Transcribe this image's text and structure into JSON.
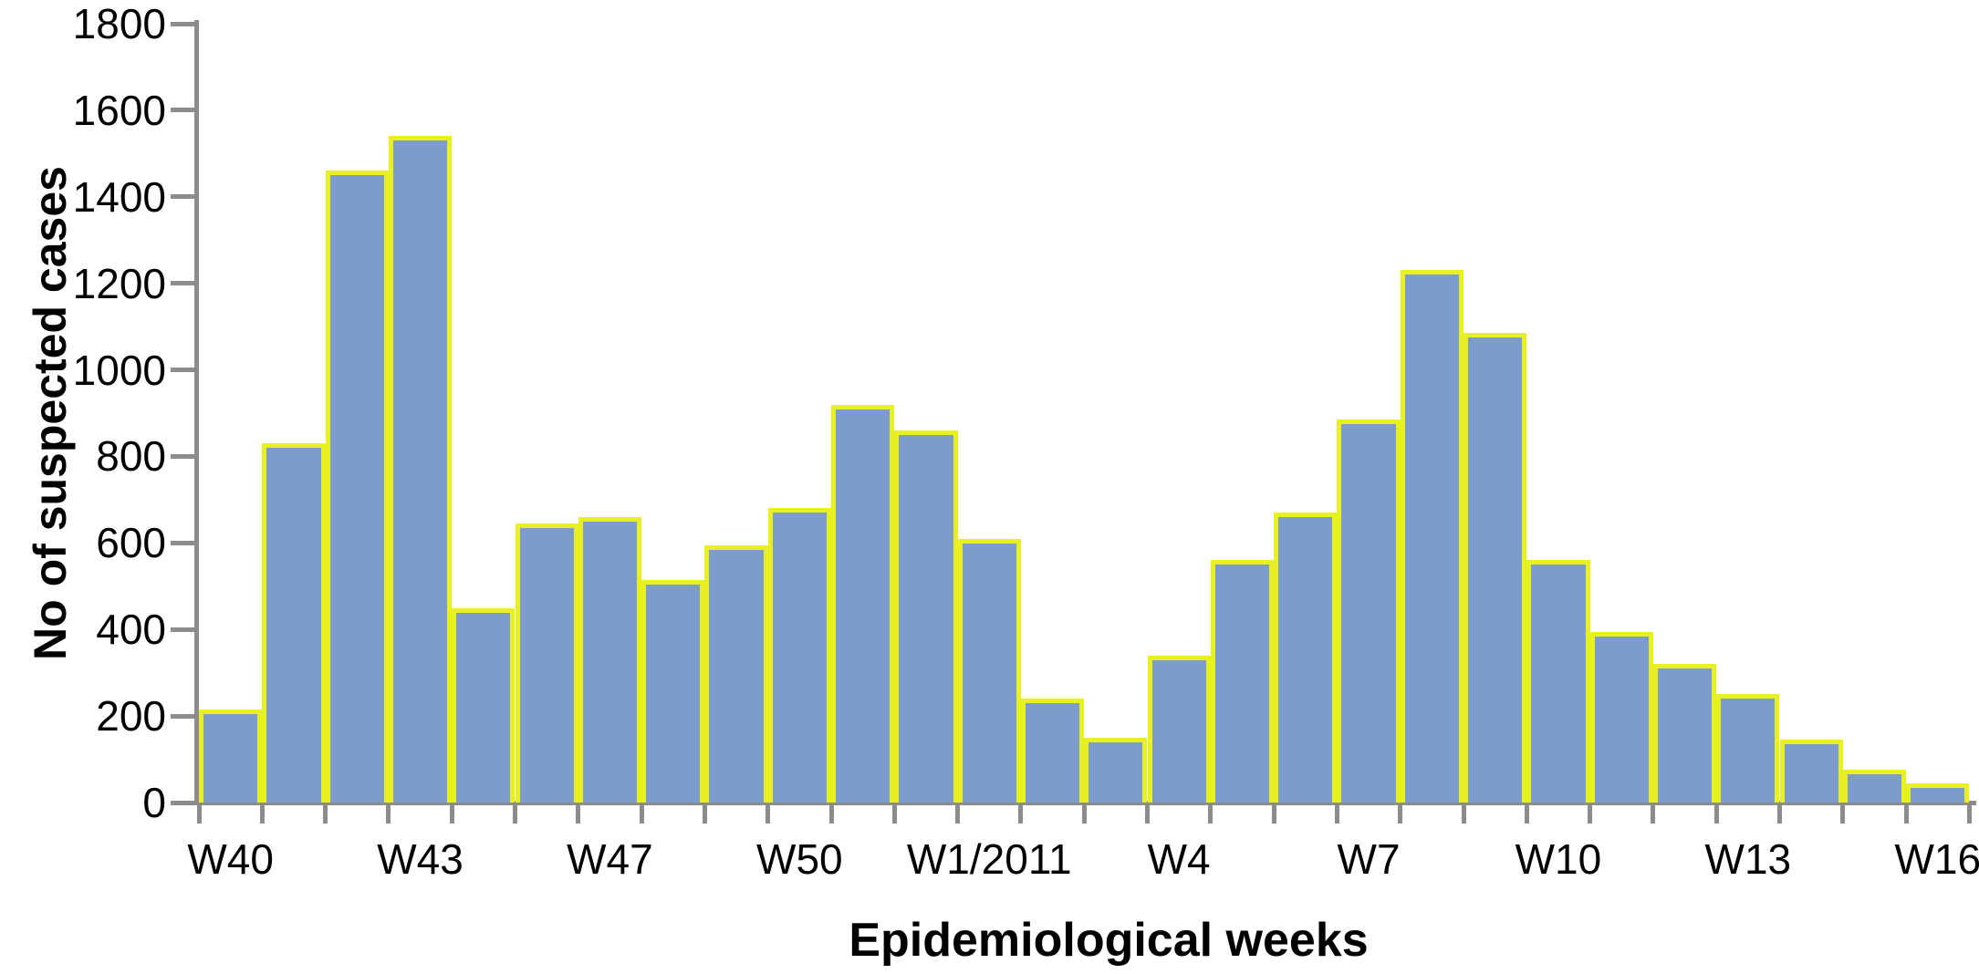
{
  "chart_data": {
    "type": "bar",
    "title": "",
    "xlabel": "Epidemiological weeks",
    "ylabel": "No of suspected cases",
    "ylim": [
      0,
      1800
    ],
    "y_tick_step": 200,
    "y_tick_labels": [
      "0",
      "200",
      "400",
      "600",
      "800",
      "1000",
      "1200",
      "1400",
      "1600",
      "1800"
    ],
    "values": [
      215,
      830,
      1460,
      1540,
      450,
      645,
      660,
      515,
      595,
      680,
      920,
      860,
      610,
      240,
      150,
      340,
      560,
      670,
      885,
      1230,
      1085,
      560,
      395,
      320,
      250,
      145,
      75,
      45
    ],
    "x_tick_labels": [
      "W40",
      "W43",
      "W47",
      "W50",
      "W1/2011",
      "W4",
      "W7",
      "W10",
      "W13",
      "W16"
    ],
    "x_tick_bar_indices": [
      0,
      3,
      6,
      9,
      12,
      15,
      18,
      21,
      24,
      27
    ],
    "grid": "off",
    "legend": "none",
    "colors": {
      "bar_fill": "#7C9DCB",
      "bar_border": "#E9F021",
      "axis": "#8C8C8C",
      "text": "#000000",
      "background": "#FFFFFF"
    }
  }
}
